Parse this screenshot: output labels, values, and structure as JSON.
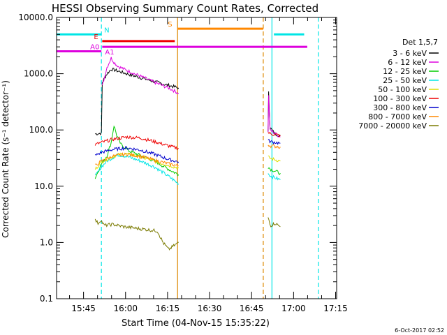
{
  "chart_data": {
    "type": "line",
    "title": "HESSI Observing Summary Count Rates, Corrected",
    "xlabel": "Start Time (04-Nov-15 15:35:22)",
    "ylabel": "Corrected Count Rate (s⁻¹ detector⁻¹)",
    "ylog": true,
    "ylim": [
      0.1,
      10000
    ],
    "xlim_minutes": [
      0,
      100
    ],
    "x_tick_labels": [
      {
        "label": "15:45",
        "t": 9.63
      },
      {
        "label": "16:00",
        "t": 24.63
      },
      {
        "label": "16:15",
        "t": 39.63
      },
      {
        "label": "16:30",
        "t": 54.63
      },
      {
        "label": "16:45",
        "t": 69.63
      },
      {
        "label": "17:00",
        "t": 84.63
      },
      {
        "label": "17:15",
        "t": 99.63
      }
    ],
    "y_tick_labels": [
      {
        "label": "10000.0",
        "v": 10000
      },
      {
        "label": "1000.0",
        "v": 1000
      },
      {
        "label": "100.0",
        "v": 100
      },
      {
        "label": "10.0",
        "v": 10
      },
      {
        "label": "1.0",
        "v": 1
      },
      {
        "label": "0.1",
        "v": 0.1
      }
    ],
    "legend_title": "Det 1,5,7",
    "legend_position": "right",
    "series": [
      {
        "name": "3 - 6 keV",
        "color": "#000000",
        "segments": [
          [
            [
              13.8,
              85
            ],
            [
              16.0,
              88
            ],
            [
              16.3,
              700
            ],
            [
              18.0,
              1000
            ],
            [
              19.5,
              1200
            ],
            [
              21.0,
              1150
            ],
            [
              25.0,
              1000
            ],
            [
              30.0,
              850
            ],
            [
              35.0,
              720
            ],
            [
              40.0,
              620
            ],
            [
              43.6,
              560
            ]
          ],
          [
            [
              75.5,
              90
            ],
            [
              75.7,
              500
            ],
            [
              76.2,
              110
            ],
            [
              78.0,
              85
            ],
            [
              79.9,
              80
            ]
          ]
        ]
      },
      {
        "name": "6 - 12 keV",
        "color": "#dd00dd",
        "segments": [
          [
            [
              16.3,
              600
            ],
            [
              18.0,
              1300
            ],
            [
              19.5,
              1900
            ],
            [
              20.5,
              1600
            ],
            [
              22.0,
              1350
            ],
            [
              25.0,
              1150
            ],
            [
              30.0,
              900
            ],
            [
              35.0,
              700
            ],
            [
              40.0,
              560
            ],
            [
              43.6,
              450
            ]
          ],
          [
            [
              75.5,
              90
            ],
            [
              75.7,
              400
            ],
            [
              76.2,
              100
            ],
            [
              79.9,
              75
            ]
          ]
        ]
      },
      {
        "name": "12 - 25 keV",
        "color": "#00cc00",
        "segments": [
          [
            [
              13.8,
              14
            ],
            [
              16.0,
              25
            ],
            [
              18.0,
              35
            ],
            [
              19.5,
              60
            ],
            [
              20.5,
              120
            ],
            [
              21.5,
              80
            ],
            [
              23.0,
              55
            ],
            [
              26.0,
              42
            ],
            [
              30.0,
              35
            ],
            [
              35.0,
              28
            ],
            [
              40.0,
              20
            ],
            [
              43.6,
              16
            ]
          ],
          [
            [
              75.5,
              22
            ],
            [
              76.5,
              20
            ],
            [
              79.9,
              17
            ]
          ]
        ]
      },
      {
        "name": "25 - 50 keV",
        "color": "#00e5e5",
        "segments": [
          [
            [
              13.8,
              15
            ],
            [
              16.0,
              22
            ],
            [
              18.0,
              28
            ],
            [
              20.0,
              32
            ],
            [
              22.0,
              36
            ],
            [
              25.0,
              34
            ],
            [
              30.0,
              28
            ],
            [
              35.0,
              22
            ],
            [
              40.0,
              15
            ],
            [
              43.6,
              11
            ]
          ],
          [
            [
              75.5,
              17
            ],
            [
              76.5,
              15
            ],
            [
              79.9,
              13
            ]
          ]
        ]
      },
      {
        "name": "50 - 100 keV",
        "color": "#dddd00",
        "segments": [
          [
            [
              13.8,
              20
            ],
            [
              16.0,
              27
            ],
            [
              20.0,
              34
            ],
            [
              24.0,
              38
            ],
            [
              28.0,
              35
            ],
            [
              33.0,
              30
            ],
            [
              38.0,
              25
            ],
            [
              43.6,
              21
            ]
          ],
          [
            [
              75.5,
              33
            ],
            [
              76.5,
              31
            ],
            [
              79.9,
              28
            ]
          ]
        ]
      },
      {
        "name": "100 - 300 keV",
        "color": "#ee0000",
        "segments": [
          [
            [
              13.8,
              55
            ],
            [
              16.0,
              60
            ],
            [
              20.0,
              68
            ],
            [
              25.0,
              75
            ],
            [
              30.0,
              72
            ],
            [
              35.0,
              62
            ],
            [
              40.0,
              52
            ],
            [
              43.6,
              47
            ]
          ],
          [
            [
              75.5,
              90
            ],
            [
              76.5,
              85
            ],
            [
              79.9,
              80
            ]
          ]
        ]
      },
      {
        "name": "300 - 800 keV",
        "color": "#0000cc",
        "segments": [
          [
            [
              13.8,
              35
            ],
            [
              16.0,
              40
            ],
            [
              20.0,
              45
            ],
            [
              25.0,
              48
            ],
            [
              30.0,
              44
            ],
            [
              35.0,
              37
            ],
            [
              40.0,
              30
            ],
            [
              43.6,
              27
            ]
          ],
          [
            [
              75.5,
              65
            ],
            [
              76.5,
              62
            ],
            [
              79.9,
              58
            ]
          ]
        ]
      },
      {
        "name": "800 - 7000 keV",
        "color": "#ff8800",
        "segments": [
          [
            [
              13.8,
              23
            ],
            [
              16.0,
              28
            ],
            [
              20.0,
              34
            ],
            [
              25.0,
              37
            ],
            [
              30.0,
              34
            ],
            [
              35.0,
              29
            ],
            [
              40.0,
              25
            ],
            [
              43.6,
              23
            ]
          ],
          [
            [
              75.5,
              55
            ],
            [
              76.5,
              52
            ],
            [
              79.9,
              50
            ]
          ]
        ]
      },
      {
        "name": "7000 - 20000 keV",
        "color": "#7a7a00",
        "segments": [
          [
            [
              13.8,
              2.5
            ],
            [
              14.8,
              2.2
            ],
            [
              15.8,
              2.5
            ],
            [
              17.0,
              2.0
            ],
            [
              20.0,
              2.1
            ],
            [
              24.0,
              1.9
            ],
            [
              28.0,
              1.8
            ],
            [
              32.0,
              1.7
            ],
            [
              36.0,
              1.6
            ],
            [
              38.0,
              1.0
            ],
            [
              40.0,
              0.75
            ],
            [
              43.6,
              1.0
            ]
          ],
          [
            [
              75.5,
              2.8
            ],
            [
              76.5,
              2.0
            ],
            [
              78.0,
              2.2
            ],
            [
              79.9,
              1.9
            ]
          ]
        ]
      }
    ],
    "flag_bars": [
      {
        "label": "N",
        "color": "#00e5e5",
        "v": 5000,
        "ranges": [
          [
            0,
            16.0
          ],
          [
            77.6,
            88.4
          ]
        ]
      },
      {
        "label": "E",
        "color": "#ee0000",
        "v": 3800,
        "ranges": [
          [
            16.3,
            42.2
          ]
        ]
      },
      {
        "label": "A0",
        "color": "#dd00dd",
        "v": 2500,
        "ranges": [
          [
            0,
            16.0
          ]
        ]
      },
      {
        "label": "A1",
        "color": "#dd00dd",
        "v": 3000,
        "ranges": [
          [
            16.3,
            89.5
          ]
        ]
      },
      {
        "label": "S",
        "color": "#ff8800",
        "v": 6300,
        "ranges": [
          [
            43.2,
            73.8
          ]
        ]
      }
    ],
    "vlines": [
      {
        "t": 16.0,
        "color": "#00e5e5",
        "style": "dashed"
      },
      {
        "t": 43.2,
        "color": "#dd8800",
        "style": "solid"
      },
      {
        "t": 73.8,
        "color": "#dd8800",
        "style": "dashed"
      },
      {
        "t": 76.9,
        "color": "#00e5e5",
        "style": "solid"
      },
      {
        "t": 93.5,
        "color": "#00e5e5",
        "style": "dashed"
      }
    ]
  },
  "timestamp": "6-Oct-2017 02:52"
}
